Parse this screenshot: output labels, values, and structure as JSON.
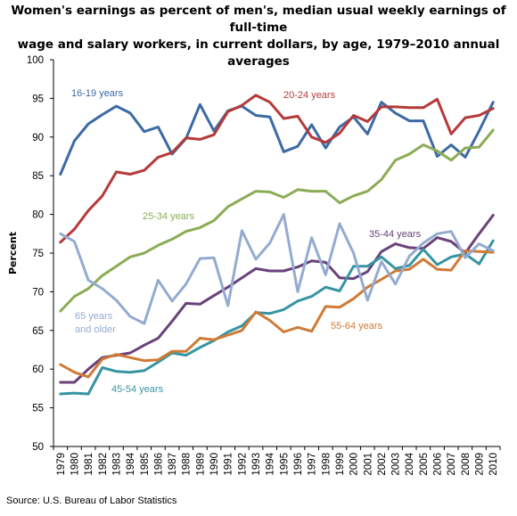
{
  "title": {
    "line1": "Women's earnings as percent of men's, median usual weekly earnings of full-time",
    "line2": "wage and salary workers, in current dollars, by age, 1979–2010 annual averages"
  },
  "source": "Source: U.S. Bureau of Labor Statistics",
  "chart_data": {
    "type": "line",
    "title": "Women's earnings as percent of men's, median usual weekly earnings of full-time wage and salary workers, in current dollars, by age, 1979–2010 annual averages",
    "xlabel": "",
    "ylabel": "Percent",
    "ylim": [
      50,
      100
    ],
    "yticks": [
      50,
      55,
      60,
      65,
      70,
      75,
      80,
      85,
      90,
      95,
      100
    ],
    "x": [
      "1979",
      "1980",
      "1981",
      "1982",
      "1983",
      "1984",
      "1985",
      "1986",
      "1987",
      "1988",
      "1989",
      "1990",
      "1991",
      "1992",
      "1993",
      "1994",
      "1995",
      "1996",
      "1997",
      "1998",
      "1999",
      "2000",
      "2001",
      "2002",
      "2003",
      "2004",
      "2005",
      "2006",
      "2007",
      "2008",
      "2009",
      "2010"
    ],
    "grid": false,
    "series": [
      {
        "name": "16-19 years",
        "color": "#3c6aa5",
        "label_lines": [
          "16-19 years"
        ],
        "values": [
          85.2,
          89.5,
          91.7,
          92.9,
          94.0,
          93.1,
          90.7,
          91.3,
          87.8,
          89.8,
          94.2,
          90.8,
          93.4,
          94.0,
          92.8,
          92.6,
          88.1,
          88.8,
          91.6,
          88.6,
          91.3,
          92.6,
          90.4,
          94.5,
          93.1,
          92.1,
          92.1,
          87.5,
          89.0,
          87.4,
          90.8,
          94.5
        ]
      },
      {
        "name": "20-24 years",
        "color": "#b53a3a",
        "label_lines": [
          "20-24 years"
        ],
        "values": [
          76.4,
          78.1,
          80.5,
          82.4,
          85.5,
          85.2,
          85.7,
          87.4,
          88.0,
          89.9,
          89.7,
          90.3,
          93.3,
          94.1,
          95.4,
          94.5,
          92.4,
          92.7,
          90.0,
          89.3,
          90.5,
          92.8,
          92.0,
          93.9,
          93.9,
          93.8,
          93.8,
          94.9,
          90.4,
          92.5,
          92.8,
          93.7
        ]
      },
      {
        "name": "25-34 years",
        "color": "#8bac55",
        "label_lines": [
          "25-34 years"
        ],
        "values": [
          67.5,
          69.4,
          70.4,
          72.1,
          73.3,
          74.5,
          75.0,
          76.0,
          76.8,
          77.8,
          78.3,
          79.2,
          81.0,
          82.0,
          83.0,
          82.9,
          82.2,
          83.2,
          83.0,
          83.0,
          81.5,
          82.4,
          83.0,
          84.5,
          87.0,
          87.8,
          89.0,
          88.2,
          87.0,
          88.6,
          88.7,
          90.9
        ]
      },
      {
        "name": "35-44 years",
        "color": "#69427a",
        "label_lines": [
          "35-44 years"
        ],
        "values": [
          58.3,
          58.3,
          60.0,
          61.5,
          61.8,
          62.1,
          63.1,
          64.0,
          66.2,
          68.5,
          68.4,
          69.5,
          70.6,
          71.8,
          73.0,
          72.7,
          72.7,
          73.2,
          74.0,
          73.8,
          71.8,
          71.7,
          72.6,
          75.2,
          76.2,
          75.7,
          75.6,
          77.0,
          76.5,
          75.0,
          77.5,
          79.9
        ]
      },
      {
        "name": "45-54 years",
        "color": "#3795a2",
        "label_lines": [
          "45-54 years"
        ],
        "values": [
          56.8,
          56.9,
          56.8,
          60.2,
          59.7,
          59.6,
          59.8,
          60.9,
          62.1,
          61.8,
          62.8,
          63.7,
          64.8,
          65.6,
          67.3,
          67.2,
          67.7,
          68.8,
          69.4,
          70.6,
          70.1,
          73.3,
          73.3,
          74.5,
          73.0,
          73.4,
          75.5,
          73.5,
          74.5,
          74.9,
          73.6,
          76.6
        ]
      },
      {
        "name": "55-64 years",
        "color": "#d07a36",
        "label_lines": [
          "55-64 years"
        ],
        "values": [
          60.6,
          59.6,
          59.0,
          61.3,
          61.9,
          61.5,
          61.1,
          61.2,
          62.3,
          62.3,
          64.0,
          63.8,
          64.4,
          65.0,
          67.4,
          66.3,
          64.8,
          65.4,
          64.9,
          68.1,
          68.0,
          69.1,
          70.6,
          71.6,
          72.7,
          72.9,
          74.2,
          72.9,
          72.8,
          75.3,
          75.2,
          75.1
        ]
      },
      {
        "name": "65 years and older",
        "color": "#94abd1",
        "label_lines": [
          "65 years",
          "and older"
        ],
        "values": [
          77.5,
          76.5,
          71.5,
          70.4,
          68.9,
          66.8,
          65.9,
          71.5,
          68.8,
          71.0,
          74.3,
          74.4,
          68.2,
          77.9,
          74.2,
          76.3,
          80.0,
          70.0,
          77.0,
          72.2,
          78.8,
          75.0,
          68.9,
          73.9,
          71.0,
          74.6,
          76.3,
          77.5,
          77.8,
          74.4,
          76.2,
          75.3
        ]
      }
    ]
  }
}
